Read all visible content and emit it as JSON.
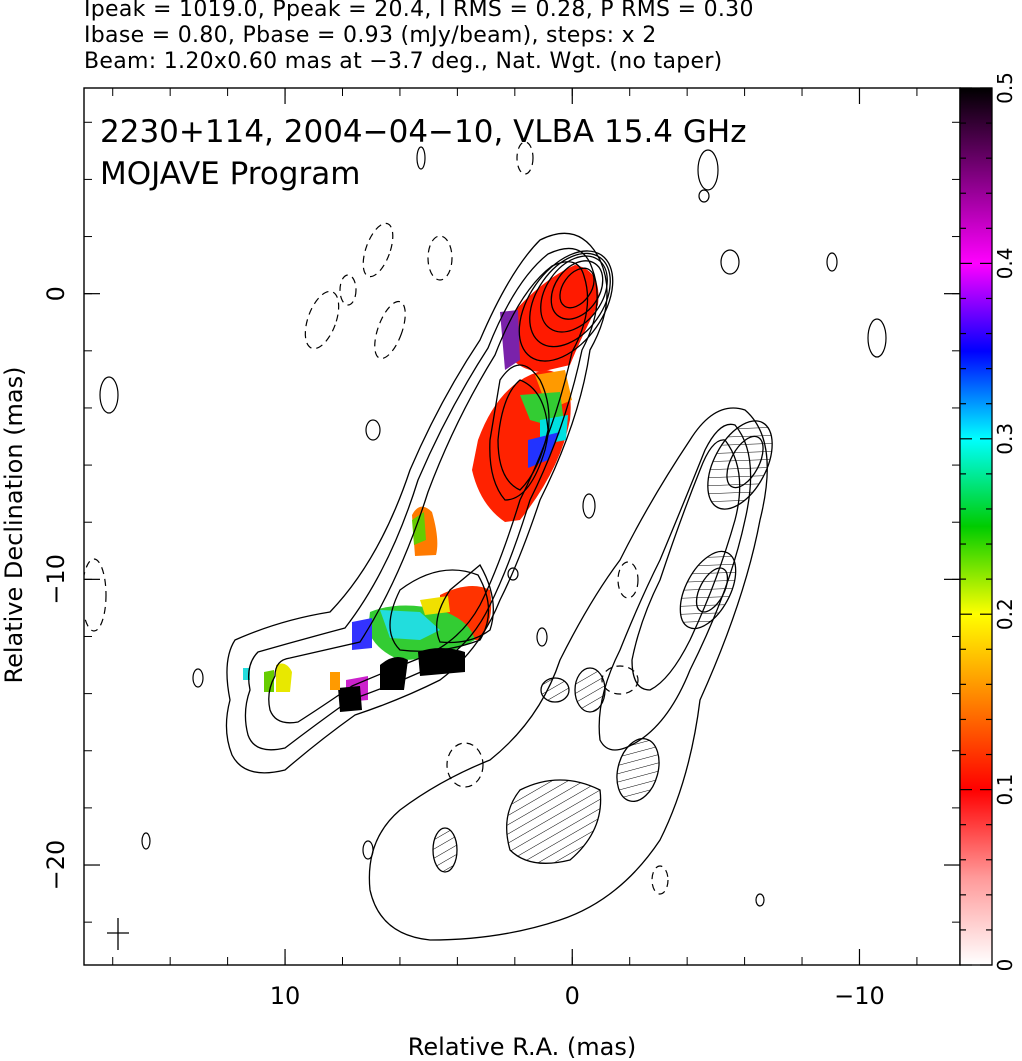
{
  "header": {
    "line1": "Ipeak = 1019.0, Ppeak = 20.4, I RMS = 0.28, P RMS = 0.30",
    "line2": "Ibase = 0.80, Pbase = 0.93 (mJy/beam), steps: x 2",
    "line3": "Beam: 1.20x0.60 mas at −3.7 deg., Nat. Wgt. (no taper)"
  },
  "chart_data": {
    "type": "heatmap",
    "title_line1": "2230+114, 2004−04−10, VLBA 15.4 GHz",
    "title_line2": "MOJAVE Program",
    "xlabel": "Relative R.A. (mas)",
    "ylabel": "Relative Declination (mas)",
    "xlim": [
      17,
      -13.5
    ],
    "ylim": [
      -23.5,
      7.2
    ],
    "x_ticks": [
      10,
      0,
      -10
    ],
    "x_tick_labels": [
      "10",
      "0",
      "−10"
    ],
    "y_ticks": [
      0,
      -10,
      -20
    ],
    "y_tick_labels": [
      "0",
      "−10",
      "−20"
    ],
    "colorbar": {
      "min": 0,
      "max": 0.5,
      "ticks": [
        0,
        0.1,
        0.2,
        0.3,
        0.4,
        0.5
      ],
      "tick_labels": [
        "0",
        "0.1",
        "0.2",
        "0.3",
        "0.4",
        "0.5"
      ],
      "colors": [
        "#ffffff",
        "#ff9999",
        "#ff0000",
        "#ff8000",
        "#ffff00",
        "#00cc00",
        "#00ffff",
        "#0000ff",
        "#ff00ff",
        "#800080",
        "#000000"
      ]
    },
    "core_position": [
      0,
      0
    ],
    "beam_cross_position": [
      16.5,
      -22.7
    ],
    "colors": {
      "contour": "#000000",
      "frame": "#000000"
    }
  }
}
